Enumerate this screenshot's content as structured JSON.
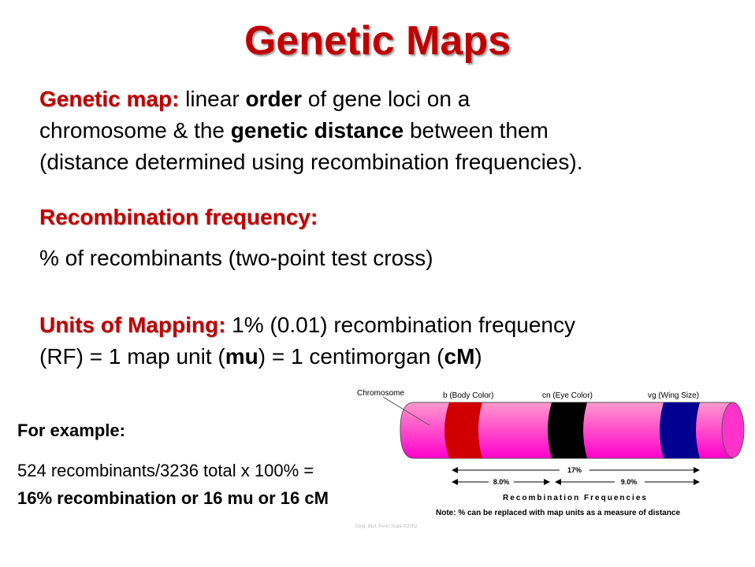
{
  "title": "Genetic Maps",
  "definition": {
    "term": "Genetic map:",
    "t1": " linear ",
    "b1": "order",
    "t2": " of gene loci on a",
    "line2a": "chromosome & the ",
    "b2": "genetic distance",
    "line2b": " between them",
    "line3": "(distance determined using recombination frequencies)."
  },
  "rf": {
    "term": "Recombination frequency:",
    "text": "% of recombinants (two-point test cross)"
  },
  "units": {
    "term": "Units of Mapping:",
    "t1": " 1% (0.01) recombination frequency",
    "l2a": "(RF) = 1 map unit (",
    "b1": "mu",
    "l2b": ") = 1 centimorgan (",
    "b2": "cM",
    "l2c": ")"
  },
  "example": {
    "heading": "For example:",
    "calc": "524 recombinants/3236 total x 100% =",
    "result": "16% recombination or 16 mu or 16 cM"
  },
  "diagram": {
    "chromosome_label": "Chromosome",
    "genes": [
      "b (Body Color)",
      "cn (Eye Color)",
      "vg (Wing Size)"
    ],
    "gene_colors": [
      "#d00000",
      "#000000",
      "#000090"
    ],
    "chromosome_color": "#ff44cc",
    "total": "17%",
    "d1": "8.0%",
    "d2": "9.0%",
    "caption": "Recombination Frequencies",
    "note": "Note: % can be replaced with map units as a measure of distance",
    "credit": "Dept. Biol. Penn State ©2002"
  }
}
